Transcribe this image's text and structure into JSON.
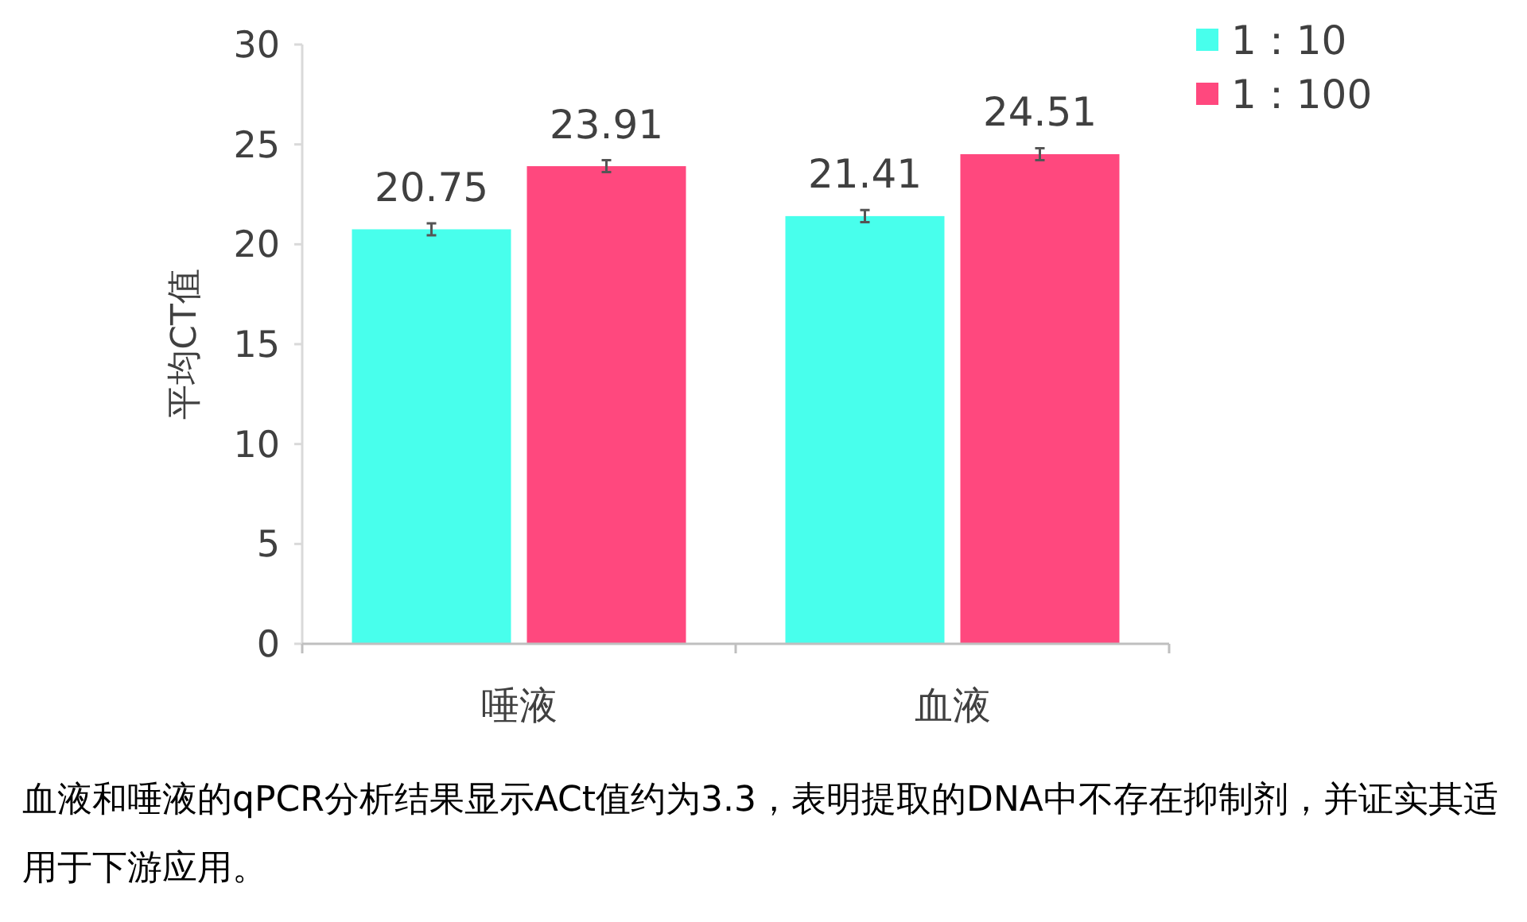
{
  "chart_data": {
    "type": "bar",
    "ylabel": "平均CT值",
    "categories": [
      "唾液",
      "血液"
    ],
    "series": [
      {
        "name": "1：10",
        "color": "#48ffec",
        "values": [
          20.75,
          21.41
        ],
        "errors": [
          0.3,
          0.3
        ]
      },
      {
        "name": "1：100",
        "color": "#ff487e",
        "values": [
          23.91,
          24.51
        ],
        "errors": [
          0.3,
          0.3
        ]
      }
    ],
    "ylim": [
      0,
      30
    ],
    "yticks": [
      0,
      5,
      10,
      15,
      20,
      25,
      30
    ],
    "data_labels": true,
    "legend": "top right",
    "grid": false,
    "annotations": [
      "血液和唾液的qPCR分析结果显示ACt值约为3.3，表明提取的DNA中不存在抑制剂，并证实其适用于下游应用。"
    ]
  }
}
